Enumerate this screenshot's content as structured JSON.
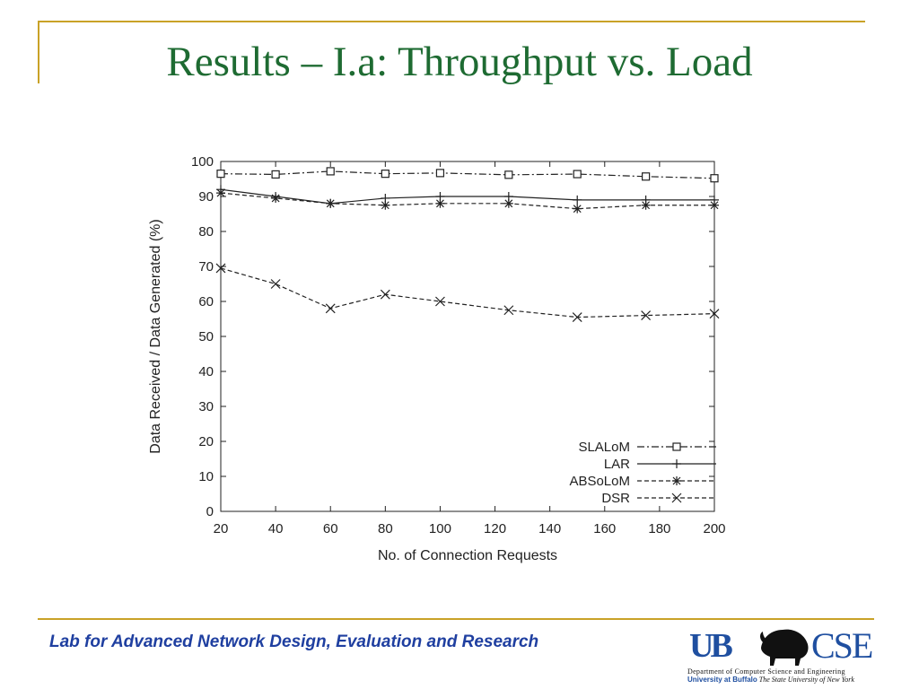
{
  "slide": {
    "title": "Results – I.a: Throughput vs. Load",
    "footer": "Lab for Advanced Network Design, Evaluation and Research"
  },
  "logo": {
    "ub_text": "UB",
    "cse_text": "CSE",
    "dept_text": "Department of Computer Science and Engineering",
    "univ_bold": "University at Buffalo",
    "univ_italic": "The State University of New York"
  },
  "colors": {
    "title": "#1e6b32",
    "rule": "#c9a227",
    "footer": "#1f3fa0",
    "logo": "#1f4fa0"
  },
  "chart_data": {
    "type": "line",
    "title": "",
    "xlabel": "No. of Connection Requests",
    "ylabel": "Data Received / Data Generated (%)",
    "xlim": [
      20,
      200
    ],
    "ylim": [
      0,
      100
    ],
    "xticks": [
      20,
      40,
      60,
      80,
      100,
      120,
      140,
      160,
      180,
      200
    ],
    "yticks": [
      0,
      10,
      20,
      30,
      40,
      50,
      60,
      70,
      80,
      90,
      100
    ],
    "grid": false,
    "legend_position": "bottom-right",
    "x": [
      20,
      40,
      60,
      80,
      100,
      125,
      150,
      175,
      200
    ],
    "series": [
      {
        "name": "SLALoM",
        "marker": "square",
        "dash": "dash-dot",
        "values": [
          96.5,
          96.3,
          97.2,
          96.5,
          96.7,
          96.2,
          96.4,
          95.7,
          95.2
        ]
      },
      {
        "name": "LAR",
        "marker": "plus",
        "dash": "solid",
        "values": [
          92,
          90,
          88,
          89.5,
          90,
          90,
          89,
          89,
          89
        ]
      },
      {
        "name": "ABSoLoM",
        "marker": "asterisk",
        "dash": "dashed",
        "values": [
          91,
          89.5,
          88,
          87.5,
          88,
          88,
          86.5,
          87.5,
          87.5
        ]
      },
      {
        "name": "DSR",
        "marker": "cross",
        "dash": "dashed",
        "values": [
          69.5,
          65,
          58,
          62,
          60,
          57.5,
          55.5,
          56,
          56.5
        ]
      }
    ]
  }
}
